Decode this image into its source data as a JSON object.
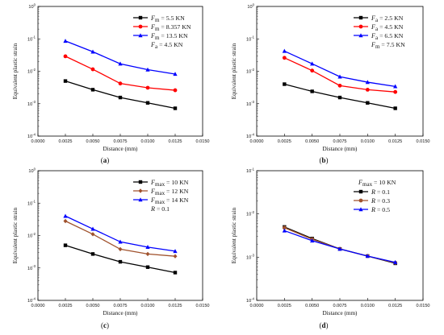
{
  "chart_data": [
    {
      "id": "a",
      "type": "line",
      "panel_label": {
        "open": "(",
        "letter": "a",
        "close": ")"
      },
      "xlabel": "Distance (mm)",
      "ylabel": "Equivalent plastic strain",
      "xlim": [
        0,
        0.015
      ],
      "ylim_log10": [
        -4,
        0
      ],
      "y_scale": "log",
      "xticks": [
        "0.0000",
        "0.0025",
        "0.0050",
        "0.0075",
        "0.0100",
        "0.0125",
        "0.0150"
      ],
      "yticks": [
        {
          "base": "10",
          "exp": "-4"
        },
        {
          "base": "10",
          "exp": "-3"
        },
        {
          "base": "10",
          "exp": "-2"
        },
        {
          "base": "10",
          "exp": "-1"
        },
        {
          "base": "10",
          "exp": "0"
        }
      ],
      "x": [
        0.0025,
        0.005,
        0.0075,
        0.01,
        0.0125
      ],
      "legend_placement": "top-right",
      "series": [
        {
          "name": {
            "sym": "F",
            "sub": "m",
            "text": " = 5.5 KN"
          },
          "color": "#000000",
          "marker": "square",
          "values": [
            0.005,
            0.0027,
            0.00155,
            0.00106,
            0.00072
          ]
        },
        {
          "name": {
            "sym": "F",
            "sub": "m",
            "text": " = 8.357 KN"
          },
          "color": "#ff0000",
          "marker": "circle",
          "values": [
            0.029,
            0.0115,
            0.0042,
            0.0031,
            0.0026
          ]
        },
        {
          "name": {
            "sym": "F",
            "sub": "m",
            "text": " = 13.5 KN"
          },
          "color": "#0000ff",
          "marker": "triangle",
          "values": [
            0.086,
            0.04,
            0.017,
            0.0112,
            0.0082
          ]
        }
      ],
      "legend_extra": [
        {
          "sym": "F",
          "sub": "a",
          "text": " = 4.5 KN"
        }
      ]
    },
    {
      "id": "b",
      "type": "line",
      "panel_label": {
        "open": "(",
        "letter": "b",
        "close": ")"
      },
      "xlabel": "Distance (mm)",
      "ylabel": "Equivalent plastic strain",
      "xlim": [
        0,
        0.015
      ],
      "ylim_log10": [
        -4,
        0
      ],
      "y_scale": "log",
      "xticks": [
        "0.0000",
        "0.0025",
        "0.0050",
        "0.0075",
        "0.0100",
        "0.0125",
        "0.0150"
      ],
      "yticks": [
        {
          "base": "10",
          "exp": "-4"
        },
        {
          "base": "10",
          "exp": "-3"
        },
        {
          "base": "10",
          "exp": "-2"
        },
        {
          "base": "10",
          "exp": "-1"
        },
        {
          "base": "10",
          "exp": "0"
        }
      ],
      "x": [
        0.0025,
        0.005,
        0.0075,
        0.01,
        0.0125
      ],
      "legend_placement": "top-right",
      "series": [
        {
          "name": {
            "sym": "F",
            "sub": "a",
            "text": " = 2.5 KN"
          },
          "color": "#000000",
          "marker": "square",
          "values": [
            0.004,
            0.0024,
            0.00155,
            0.00106,
            0.00072
          ]
        },
        {
          "name": {
            "sym": "F",
            "sub": "a",
            "text": " = 4.5 KN"
          },
          "color": "#ff0000",
          "marker": "circle",
          "values": [
            0.026,
            0.0105,
            0.0036,
            0.0027,
            0.0023
          ]
        },
        {
          "name": {
            "sym": "F",
            "sub": "a",
            "text": " = 6.5 KN"
          },
          "color": "#0000ff",
          "marker": "triangle",
          "values": [
            0.042,
            0.017,
            0.0068,
            0.0046,
            0.0034
          ]
        }
      ],
      "legend_extra": [
        {
          "sym": "F",
          "sub": "m",
          "text": " = 7.5 KN"
        }
      ]
    },
    {
      "id": "c",
      "type": "line",
      "panel_label": {
        "open": "(",
        "letter": "c",
        "close": ")"
      },
      "xlabel": "Distance (mm)",
      "ylabel": "Equivalent plastic strain",
      "xlim": [
        0,
        0.015
      ],
      "ylim_log10": [
        -4,
        0
      ],
      "y_scale": "log",
      "xticks": [
        "0.0000",
        "0.0025",
        "0.0050",
        "0.0075",
        "0.0100",
        "0.0125",
        "0.0150"
      ],
      "yticks": [
        {
          "base": "10",
          "exp": "-4"
        },
        {
          "base": "10",
          "exp": "-3"
        },
        {
          "base": "10",
          "exp": "-2"
        },
        {
          "base": "10",
          "exp": "-1"
        },
        {
          "base": "10",
          "exp": "0"
        }
      ],
      "x": [
        0.0025,
        0.005,
        0.0075,
        0.01,
        0.0125
      ],
      "legend_placement": "top-right",
      "series": [
        {
          "name": {
            "sym": "F",
            "sub": "max",
            "text": " = 10 KN"
          },
          "color": "#000000",
          "marker": "square",
          "values": [
            0.005,
            0.0027,
            0.00155,
            0.00106,
            0.00072
          ]
        },
        {
          "name": {
            "sym": "F",
            "sub": "max",
            "text": " = 12 KN"
          },
          "color": "#a0522d",
          "marker": "diamond",
          "values": [
            0.028,
            0.011,
            0.0038,
            0.0027,
            0.0023
          ]
        },
        {
          "name": {
            "sym": "F",
            "sub": "max",
            "text": " = 14 KN"
          },
          "color": "#0000ff",
          "marker": "triangle",
          "values": [
            0.04,
            0.016,
            0.0064,
            0.0044,
            0.0033
          ]
        }
      ],
      "legend_extra": [
        {
          "sym": "R",
          "sub": "",
          "text": " = 0.1"
        }
      ]
    },
    {
      "id": "d",
      "type": "line",
      "panel_label": {
        "open": "(",
        "letter": "d",
        "close": ")"
      },
      "xlabel": "Distance (mm)",
      "ylabel": "Equivalent plastic strain",
      "xlim": [
        0,
        0.015
      ],
      "ylim_log10": [
        -4,
        -1
      ],
      "y_scale": "log",
      "xticks": [
        "0.0000",
        "0.0025",
        "0.0050",
        "0.0075",
        "0.0100",
        "0.0125",
        "0.0150"
      ],
      "yticks": [
        {
          "base": "10",
          "exp": "-4"
        },
        {
          "base": "10",
          "exp": "-3"
        },
        {
          "base": "10",
          "exp": "-2"
        },
        {
          "base": "10",
          "exp": "-1"
        }
      ],
      "x": [
        0.0025,
        0.005,
        0.0075,
        0.01,
        0.0125
      ],
      "legend_placement": "top-right",
      "legend_header": {
        "sym": "F",
        "sub": "max",
        "text": " = 10 KN"
      },
      "series": [
        {
          "name": {
            "sym": "R",
            "sub": "",
            "text": " = 0.1"
          },
          "color": "#000000",
          "marker": "square",
          "values": [
            0.005,
            0.0027,
            0.00155,
            0.00106,
            0.00072
          ]
        },
        {
          "name": {
            "sym": "R",
            "sub": "",
            "text": " = 0.3"
          },
          "color": "#a0522d",
          "marker": "circle",
          "values": [
            0.0048,
            0.0026,
            0.00155,
            0.00106,
            0.00074
          ]
        },
        {
          "name": {
            "sym": "R",
            "sub": "",
            "text": " = 0.5"
          },
          "color": "#0000ff",
          "marker": "triangle",
          "values": [
            0.0041,
            0.0024,
            0.00155,
            0.00106,
            0.00076
          ]
        }
      ],
      "legend_extra": []
    }
  ]
}
